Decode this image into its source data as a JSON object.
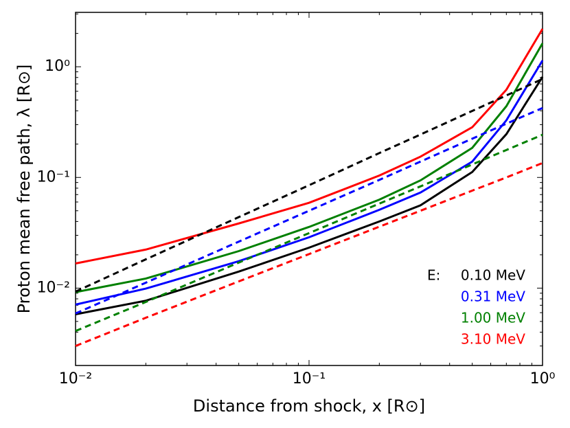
{
  "chart_data": {
    "type": "line",
    "xlabel": "Distance from shock, x [R⊙]",
    "ylabel": "Proton mean free path, λ [R⊙]",
    "xscale": "log",
    "yscale": "log",
    "xlim": [
      0.01,
      1
    ],
    "ylim": [
      0.002,
      3.1
    ],
    "xticks": [
      {
        "value": 0.01,
        "label": "10⁻²"
      },
      {
        "value": 0.1,
        "label": "10⁻¹"
      },
      {
        "value": 1,
        "label": "10⁰"
      }
    ],
    "yticks": [
      {
        "value": 0.01,
        "label": "10⁻²"
      },
      {
        "value": 0.1,
        "label": "10⁻¹"
      },
      {
        "value": 1,
        "label": "10⁰"
      }
    ],
    "legend_title": "E:",
    "legend_position": "lower right",
    "x": [
      0.01,
      0.02,
      0.05,
      0.1,
      0.2,
      0.3,
      0.5,
      0.7,
      1.0
    ],
    "series": [
      {
        "name": "0.10 MeV",
        "color": "#000000",
        "dashed": false,
        "values": [
          0.0058,
          0.0077,
          0.0141,
          0.0232,
          0.04,
          0.056,
          0.112,
          0.246,
          0.81
        ]
      },
      {
        "name": "0.31 MeV",
        "color": "#0000ff",
        "dashed": false,
        "values": [
          0.0071,
          0.0099,
          0.0175,
          0.0288,
          0.051,
          0.073,
          0.139,
          0.328,
          1.14
        ]
      },
      {
        "name": "1.00 MeV",
        "color": "#008000",
        "dashed": false,
        "values": [
          0.0092,
          0.0122,
          0.0216,
          0.0357,
          0.063,
          0.094,
          0.185,
          0.44,
          1.63
        ]
      },
      {
        "name": "3.10 MeV",
        "color": "#ff0000",
        "dashed": false,
        "values": [
          0.0167,
          0.0223,
          0.0384,
          0.059,
          0.104,
          0.154,
          0.284,
          0.62,
          2.2
        ]
      },
      {
        "color": "#000000",
        "dashed": true,
        "values": [
          0.0093,
          0.0182,
          0.0438,
          0.085,
          0.166,
          0.244,
          0.399,
          0.55,
          0.776
        ]
      },
      {
        "color": "#0000ff",
        "dashed": true,
        "values": [
          0.0059,
          0.0112,
          0.0263,
          0.05,
          0.095,
          0.139,
          0.224,
          0.306,
          0.424
        ]
      },
      {
        "color": "#008000",
        "dashed": true,
        "values": [
          0.0041,
          0.0075,
          0.017,
          0.0314,
          0.058,
          0.083,
          0.131,
          0.177,
          0.243
        ]
      },
      {
        "color": "#ff0000",
        "dashed": true,
        "values": [
          0.003,
          0.0054,
          0.0115,
          0.0203,
          0.0359,
          0.05,
          0.076,
          0.1,
          0.135
        ]
      }
    ]
  }
}
